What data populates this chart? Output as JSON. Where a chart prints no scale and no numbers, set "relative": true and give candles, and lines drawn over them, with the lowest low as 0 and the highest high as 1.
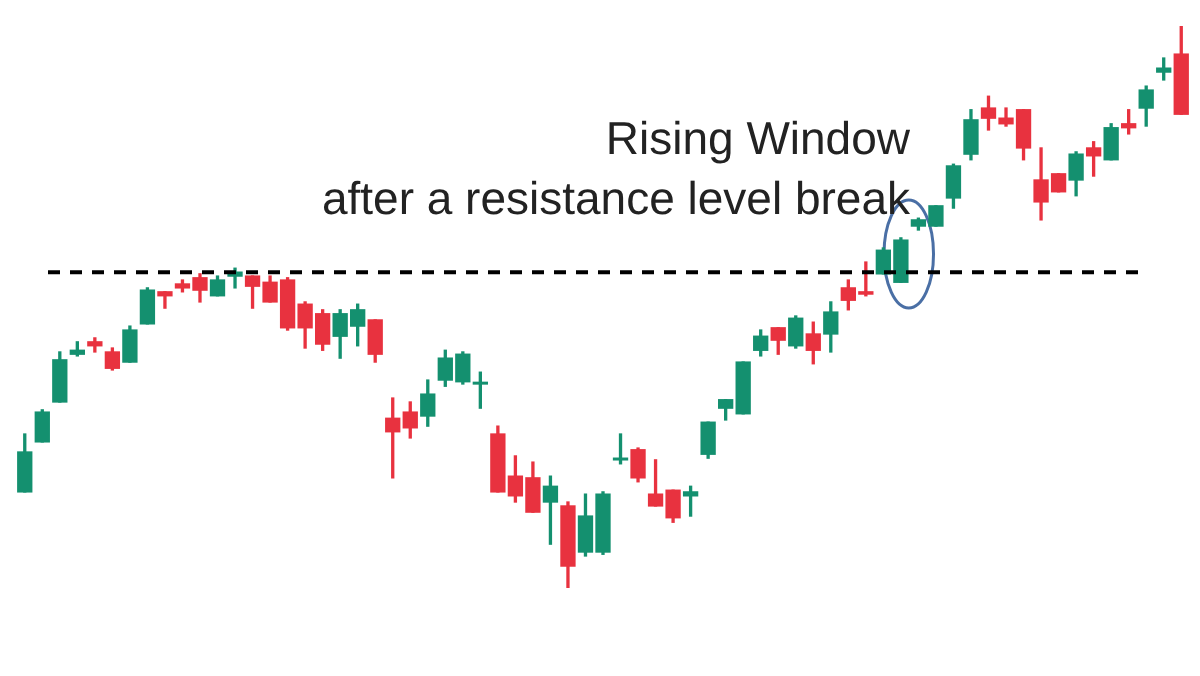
{
  "chart_data": {
    "type": "candlestick",
    "relative": true,
    "categories": [
      null,
      null,
      null,
      null,
      null,
      null,
      null,
      null,
      null,
      null,
      null,
      null,
      null,
      null,
      null,
      null,
      null,
      null,
      null,
      null,
      null,
      null,
      null,
      null,
      null,
      null,
      null,
      null,
      null,
      null,
      null,
      null,
      null,
      null,
      null,
      null,
      null,
      null,
      null,
      null,
      null,
      null,
      null,
      null,
      null,
      null,
      null,
      null,
      null,
      null,
      null,
      null,
      null,
      null,
      null,
      null,
      null,
      null,
      null,
      null,
      null,
      null,
      null,
      null,
      null,
      null,
      null
    ],
    "ohlc": [
      [
        0.171,
        0.274,
        0.171,
        0.242
      ],
      [
        0.26,
        0.317,
        0.26,
        0.313
      ],
      [
        0.331,
        0.42,
        0.331,
        0.406
      ],
      [
        0.416,
        0.438,
        0.413,
        0.423
      ],
      [
        0.438,
        0.445,
        0.42,
        0.431
      ],
      [
        0.42,
        0.427,
        0.388,
        0.391
      ],
      [
        0.402,
        0.466,
        0.402,
        0.459
      ],
      [
        0.47,
        0.534,
        0.47,
        0.53
      ],
      [
        0.527,
        0.527,
        0.498,
        0.52
      ],
      [
        0.541,
        0.548,
        0.527,
        0.534
      ],
      [
        0.552,
        0.559,
        0.509,
        0.53
      ],
      [
        0.52,
        0.555,
        0.52,
        0.548
      ],
      [
        0.555,
        0.569,
        0.534,
        0.562
      ],
      [
        0.555,
        0.555,
        0.498,
        0.537
      ],
      [
        0.544,
        0.555,
        0.509,
        0.509
      ],
      [
        0.548,
        0.552,
        0.459,
        0.463
      ],
      [
        0.505,
        0.509,
        0.427,
        0.463
      ],
      [
        0.488,
        0.495,
        0.423,
        0.434
      ],
      [
        0.448,
        0.495,
        0.409,
        0.488
      ],
      [
        0.466,
        0.505,
        0.431,
        0.495
      ],
      [
        0.477,
        0.477,
        0.402,
        0.416
      ],
      [
        0.302,
        0.338,
        0.196,
        0.278
      ],
      [
        0.313,
        0.331,
        0.267,
        0.285
      ],
      [
        0.306,
        0.37,
        0.288,
        0.345
      ],
      [
        0.37,
        0.423,
        0.359,
        0.409
      ],
      [
        0.367,
        0.42,
        0.363,
        0.416
      ],
      [
        0.363,
        0.384,
        0.32,
        0.366
      ],
      [
        0.274,
        0.288,
        0.171,
        0.171
      ],
      [
        0.199,
        0.235,
        0.153,
        0.164
      ],
      [
        0.196,
        0.224,
        0.135,
        0.135
      ],
      [
        0.153,
        0.199,
        0.078,
        0.181
      ],
      [
        0.146,
        0.153,
        0,
        0.039
      ],
      [
        0.064,
        0.167,
        0.057,
        0.128
      ],
      [
        0.064,
        0.171,
        0.06,
        0.167
      ],
      [
        0.228,
        0.274,
        0.221,
        0.231
      ],
      [
        0.246,
        0.249,
        0.189,
        0.196
      ],
      [
        0.167,
        0.228,
        0.146,
        0.146
      ],
      [
        0.174,
        0.174,
        0.117,
        0.125
      ],
      [
        0.164,
        0.181,
        0.128,
        0.171
      ],
      [
        0.238,
        0.295,
        0.231,
        0.295
      ],
      [
        0.32,
        0.335,
        0.299,
        0.335
      ],
      [
        0.31,
        0.402,
        0.31,
        0.402
      ],
      [
        0.423,
        0.459,
        0.413,
        0.448
      ],
      [
        0.463,
        0.463,
        0.416,
        0.441
      ],
      [
        0.431,
        0.484,
        0.427,
        0.48
      ],
      [
        0.452,
        0.473,
        0.399,
        0.423
      ],
      [
        0.452,
        0.509,
        0.42,
        0.491
      ],
      [
        0.534,
        0.548,
        0.495,
        0.512
      ],
      [
        0.527,
        0.58,
        0.52,
        0.523
      ],
      [
        0.559,
        0.605,
        0.559,
        0.601
      ],
      [
        0.544,
        0.623,
        0.544,
        0.619
      ],
      [
        0.644,
        0.658,
        0.637,
        0.655
      ],
      [
        0.644,
        0.68,
        0.644,
        0.68
      ],
      [
        0.694,
        0.754,
        0.676,
        0.751
      ],
      [
        0.772,
        0.851,
        0.762,
        0.833
      ],
      [
        0.854,
        0.875,
        0.815,
        0.836
      ],
      [
        0.836,
        0.854,
        0.822,
        0.826
      ],
      [
        0.851,
        0.851,
        0.762,
        0.783
      ],
      [
        0.726,
        0.783,
        0.655,
        0.687
      ],
      [
        0.737,
        0.737,
        0.705,
        0.705
      ],
      [
        0.726,
        0.776,
        0.698,
        0.772
      ],
      [
        0.783,
        0.794,
        0.733,
        0.769
      ],
      [
        0.762,
        0.826,
        0.762,
        0.819
      ],
      [
        0.826,
        0.851,
        0.808,
        0.819
      ],
      [
        0.854,
        0.893,
        0.822,
        0.886
      ],
      [
        0.918,
        0.943,
        0.904,
        0.925
      ],
      [
        0.95,
        1.0,
        0.843,
        0.843
      ]
    ],
    "colors": [
      "#14906f",
      "#14906f",
      "#14906f",
      "#14906f",
      "#e8323f",
      "#e8323f",
      "#14906f",
      "#14906f",
      "#e8323f",
      "#e8323f",
      "#e8323f",
      "#14906f",
      "#14906f",
      "#e8323f",
      "#e8323f",
      "#e8323f",
      "#e8323f",
      "#e8323f",
      "#14906f",
      "#14906f",
      "#e8323f",
      "#e8323f",
      "#e8323f",
      "#14906f",
      "#14906f",
      "#14906f",
      "#14906f",
      "#e8323f",
      "#e8323f",
      "#e8323f",
      "#14906f",
      "#e8323f",
      "#14906f",
      "#14906f",
      "#14906f",
      "#e8323f",
      "#e8323f",
      "#e8323f",
      "#14906f",
      "#14906f",
      "#14906f",
      "#14906f",
      "#14906f",
      "#e8323f",
      "#14906f",
      "#e8323f",
      "#14906f",
      "#e8323f",
      "#e8323f",
      "#14906f",
      "#14906f",
      "#14906f",
      "#14906f",
      "#14906f",
      "#14906f",
      "#e8323f",
      "#e8323f",
      "#e8323f",
      "#e8323f",
      "#e8323f",
      "#14906f",
      "#e8323f",
      "#14906f",
      "#e8323f",
      "#14906f",
      "#14906f",
      "#e8323f"
    ],
    "ref_lines": [
      {
        "axis": "y",
        "value": 0.562,
        "color": "#000000",
        "line_style": "dashed"
      }
    ],
    "annotations": [
      "Rising Window\nafter a resistance level break"
    ]
  }
}
